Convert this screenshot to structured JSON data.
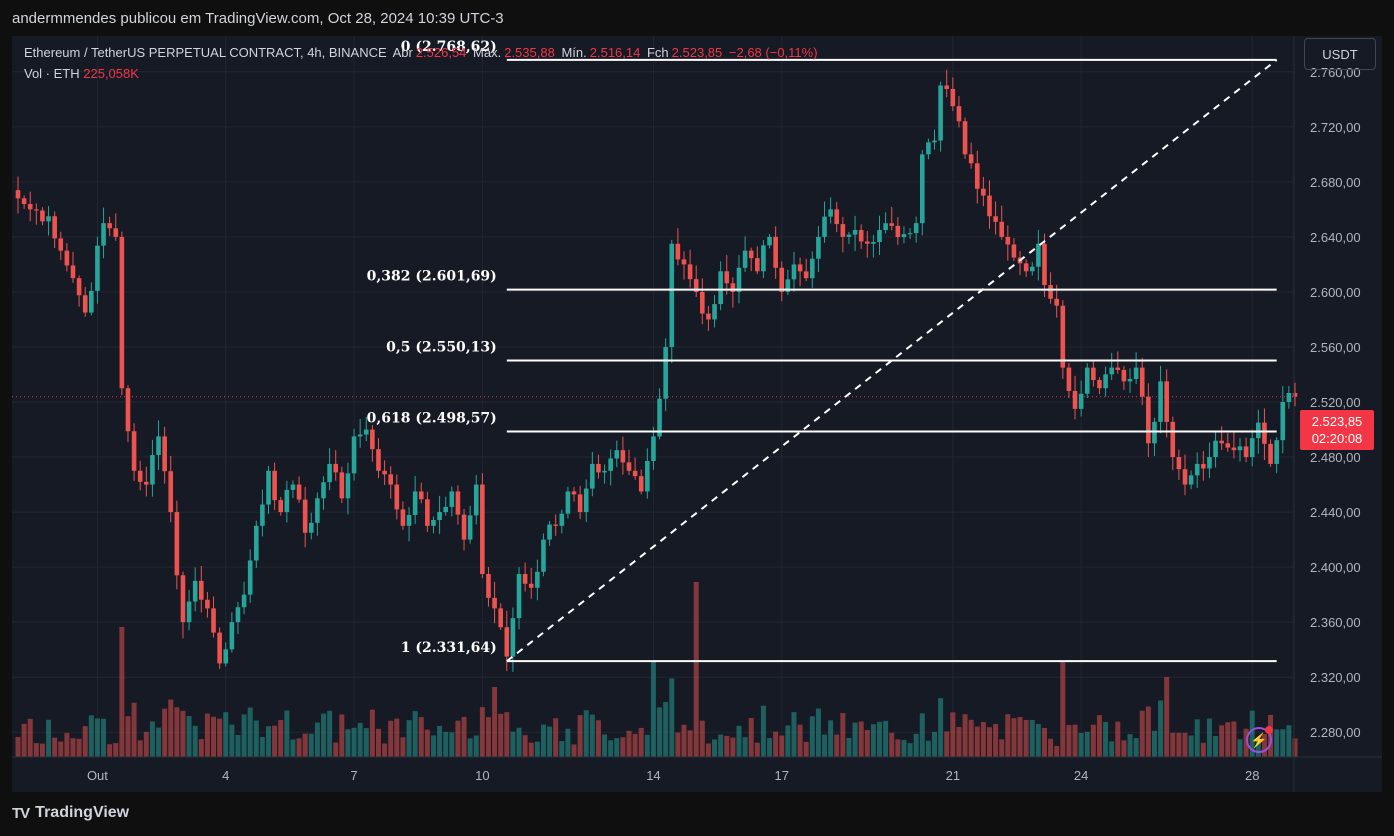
{
  "header": {
    "publisher_line": "andermmendes publicou em TradingView.com, Oct 28, 2024 10:39 UTC-3"
  },
  "legend": {
    "symbol": "Ethereum / TetherUS PERPETUAL CONTRACT, 4h, BINANCE",
    "open_label": "Abr",
    "open_value": "2.526,54",
    "high_label": "Máx.",
    "high_value": "2.535,88",
    "low_label": "Mín.",
    "low_value": "2.516,14",
    "close_label": "Fch",
    "close_value": "2.523,85",
    "change": "−2,68 (−0,11%)",
    "vol_label": "Vol · ETH",
    "vol_value": "225,058K"
  },
  "currency_button": "USDT",
  "price_tag": {
    "price": "2.523,85",
    "countdown": "02:20:08"
  },
  "footer": {
    "logo_text": "TV",
    "brand": "TradingView"
  },
  "colors": {
    "background": "#161a25",
    "up": "#26a69a",
    "down": "#ef5350",
    "fib_line": "#ffffff",
    "accent_red": "#f23645"
  },
  "chart_data": {
    "type": "candlestick",
    "ylim": [
      2262,
      2786
    ],
    "y_ticks": [
      {
        "value": 2760,
        "label": "2.760,00"
      },
      {
        "value": 2720,
        "label": "2.720,00"
      },
      {
        "value": 2680,
        "label": "2.680,00"
      },
      {
        "value": 2640,
        "label": "2.640,00"
      },
      {
        "value": 2600,
        "label": "2.600,00"
      },
      {
        "value": 2560,
        "label": "2.560,00"
      },
      {
        "value": 2520,
        "label": "2.520,00"
      },
      {
        "value": 2480,
        "label": "2.480,00"
      },
      {
        "value": 2440,
        "label": "2.440,00"
      },
      {
        "value": 2400,
        "label": "2.400,00"
      },
      {
        "value": 2360,
        "label": "2.360,00"
      },
      {
        "value": 2320,
        "label": "2.320,00"
      },
      {
        "value": 2280,
        "label": "2.280,00"
      }
    ],
    "x_ticks": [
      {
        "index": 13,
        "label": "Out"
      },
      {
        "index": 34,
        "label": "4"
      },
      {
        "index": 55,
        "label": "7"
      },
      {
        "index": 76,
        "label": "10"
      },
      {
        "index": 104,
        "label": "14"
      },
      {
        "index": 125,
        "label": "17"
      },
      {
        "index": 153,
        "label": "21"
      },
      {
        "index": 174,
        "label": "24"
      },
      {
        "index": 202,
        "label": "28"
      }
    ],
    "last_price": 2523.85,
    "fibonacci": {
      "start_index": 80,
      "end_index": 206,
      "levels": [
        {
          "ratio": "0",
          "price": 2768.62,
          "label": "0 (2.768,62)"
        },
        {
          "ratio": "0,382",
          "price": 2601.69,
          "label": "0,382 (2.601,69)"
        },
        {
          "ratio": "0,5",
          "price": 2550.13,
          "label": "0,5 (2.550,13)"
        },
        {
          "ratio": "0,618",
          "price": 2498.57,
          "label": "0,618 (2.498,57)"
        },
        {
          "ratio": "1",
          "price": 2331.64,
          "label": "1 (2.331,64)"
        }
      ],
      "trend_line": {
        "from": [
          80,
          2331.64
        ],
        "to": [
          206,
          2768.62
        ]
      }
    },
    "keypoints": [
      [
        0,
        2668
      ],
      [
        2,
        2660
      ],
      [
        5,
        2655
      ],
      [
        7,
        2630
      ],
      [
        9,
        2610
      ],
      [
        11,
        2585
      ],
      [
        14,
        2650
      ],
      [
        16,
        2640
      ],
      [
        17,
        2530
      ],
      [
        19,
        2470
      ],
      [
        21,
        2460
      ],
      [
        23,
        2495
      ],
      [
        25,
        2440
      ],
      [
        27,
        2360
      ],
      [
        29,
        2390
      ],
      [
        31,
        2370
      ],
      [
        33,
        2330
      ],
      [
        35,
        2360
      ],
      [
        37,
        2380
      ],
      [
        39,
        2430
      ],
      [
        41,
        2470
      ],
      [
        43,
        2440
      ],
      [
        45,
        2460
      ],
      [
        47,
        2425
      ],
      [
        49,
        2450
      ],
      [
        51,
        2475
      ],
      [
        53,
        2450
      ],
      [
        55,
        2495
      ],
      [
        57,
        2500
      ],
      [
        59,
        2470
      ],
      [
        61,
        2460
      ],
      [
        63,
        2430
      ],
      [
        65,
        2455
      ],
      [
        67,
        2430
      ],
      [
        69,
        2440
      ],
      [
        71,
        2455
      ],
      [
        73,
        2420
      ],
      [
        75,
        2460
      ],
      [
        76,
        2395
      ],
      [
        78,
        2370
      ],
      [
        80,
        2335
      ],
      [
        82,
        2395
      ],
      [
        84,
        2385
      ],
      [
        86,
        2420
      ],
      [
        88,
        2430
      ],
      [
        90,
        2455
      ],
      [
        92,
        2440
      ],
      [
        94,
        2475
      ],
      [
        96,
        2470
      ],
      [
        98,
        2485
      ],
      [
        100,
        2470
      ],
      [
        102,
        2455
      ],
      [
        104,
        2495
      ],
      [
        106,
        2560
      ],
      [
        107,
        2635
      ],
      [
        109,
        2620
      ],
      [
        111,
        2600
      ],
      [
        113,
        2580
      ],
      [
        115,
        2615
      ],
      [
        117,
        2600
      ],
      [
        119,
        2630
      ],
      [
        121,
        2615
      ],
      [
        123,
        2640
      ],
      [
        125,
        2600
      ],
      [
        127,
        2620
      ],
      [
        129,
        2610
      ],
      [
        131,
        2640
      ],
      [
        133,
        2660
      ],
      [
        135,
        2640
      ],
      [
        137,
        2645
      ],
      [
        139,
        2635
      ],
      [
        141,
        2645
      ],
      [
        143,
        2648
      ],
      [
        145,
        2642
      ],
      [
        147,
        2650
      ],
      [
        148,
        2700
      ],
      [
        150,
        2710
      ],
      [
        151,
        2750
      ],
      [
        153,
        2735
      ],
      [
        155,
        2700
      ],
      [
        157,
        2675
      ],
      [
        159,
        2655
      ],
      [
        161,
        2640
      ],
      [
        163,
        2625
      ],
      [
        165,
        2615
      ],
      [
        167,
        2635
      ],
      [
        168,
        2605
      ],
      [
        170,
        2590
      ],
      [
        171,
        2545
      ],
      [
        173,
        2515
      ],
      [
        175,
        2545
      ],
      [
        177,
        2530
      ],
      [
        179,
        2545
      ],
      [
        181,
        2535
      ],
      [
        183,
        2545
      ],
      [
        185,
        2490
      ],
      [
        187,
        2535
      ],
      [
        189,
        2480
      ],
      [
        191,
        2460
      ],
      [
        193,
        2475
      ],
      [
        195,
        2480
      ],
      [
        197,
        2490
      ],
      [
        199,
        2485
      ],
      [
        201,
        2480
      ],
      [
        203,
        2505
      ],
      [
        205,
        2475
      ],
      [
        207,
        2520
      ],
      [
        208,
        2526.54
      ],
      [
        209,
        2523.85
      ]
    ],
    "volume_spikes": [
      {
        "index": 17,
        "value": 130
      },
      {
        "index": 78,
        "value": 70
      },
      {
        "index": 104,
        "value": 95
      },
      {
        "index": 111,
        "value": 175
      },
      {
        "index": 171,
        "value": 95
      },
      {
        "index": 188,
        "value": 80
      }
    ]
  }
}
